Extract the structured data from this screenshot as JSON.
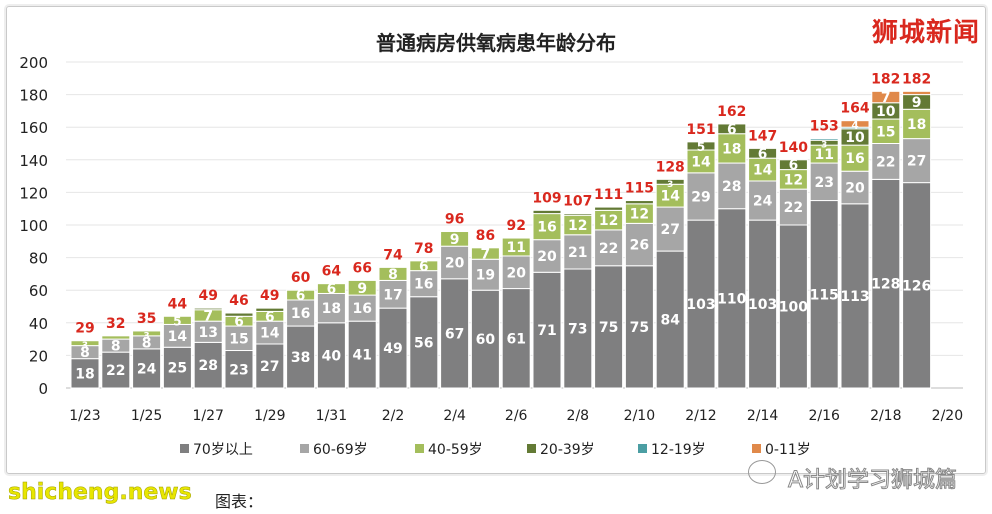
{
  "watermark_top": "狮城新闻",
  "watermark_bottom": "A计划学习狮城篇",
  "watermark_site": "shicheng.news",
  "caption": "图表：",
  "chart_data": {
    "type": "bar",
    "stacked": true,
    "title": "普通病房供氧病患年龄分布",
    "xlabel": "",
    "ylabel": "",
    "ylim": [
      0,
      200
    ],
    "yticks": [
      0,
      20,
      40,
      60,
      80,
      100,
      120,
      140,
      160,
      180,
      200
    ],
    "grid": true,
    "legend": "bottom",
    "categories": [
      "1/23",
      "1/24",
      "1/25",
      "1/26",
      "1/27",
      "1/28",
      "1/29",
      "1/30",
      "1/31",
      "2/1",
      "2/2",
      "2/3",
      "2/4",
      "2/5",
      "2/6",
      "2/7",
      "2/8",
      "2/9",
      "2/10",
      "2/11",
      "2/12",
      "2/13",
      "2/14",
      "2/15",
      "2/16",
      "2/17",
      "2/18",
      "2/19"
    ],
    "xticks": [
      "1/23",
      "1/25",
      "1/27",
      "1/29",
      "1/31",
      "2/2",
      "2/4",
      "2/6",
      "2/8",
      "2/10",
      "2/12",
      "2/14",
      "2/16",
      "2/18",
      "2/20"
    ],
    "series": [
      {
        "name": "70岁以上",
        "color": "#7f7f80",
        "values": [
          18,
          22,
          24,
          25,
          28,
          23,
          27,
          38,
          40,
          41,
          49,
          56,
          67,
          60,
          61,
          71,
          73,
          75,
          75,
          84,
          103,
          110,
          103,
          100,
          115,
          113,
          128,
          126
        ]
      },
      {
        "name": "60-69岁",
        "color": "#a6a6a6",
        "values": [
          8,
          8,
          8,
          14,
          13,
          15,
          14,
          16,
          18,
          16,
          17,
          16,
          20,
          19,
          20,
          20,
          21,
          22,
          26,
          27,
          29,
          28,
          24,
          22,
          23,
          20,
          22,
          27
        ]
      },
      {
        "name": "40-59岁",
        "color": "#a4be5c",
        "values": [
          3,
          2,
          3,
          5,
          7,
          6,
          6,
          6,
          6,
          9,
          8,
          6,
          9,
          7,
          11,
          16,
          12,
          12,
          12,
          14,
          14,
          18,
          14,
          12,
          11,
          16,
          15,
          18
        ]
      },
      {
        "name": "20-39岁",
        "color": "#637a35",
        "values": [
          0,
          0,
          0,
          0,
          1,
          2,
          2,
          0,
          0,
          0,
          0,
          0,
          0,
          0,
          0,
          2,
          1,
          2,
          2,
          3,
          5,
          6,
          6,
          6,
          3,
          10,
          10,
          9
        ]
      },
      {
        "name": "12-19岁",
        "color": "#4b9ea3",
        "values": [
          0,
          0,
          0,
          0,
          0,
          0,
          0,
          0,
          0,
          0,
          0,
          0,
          0,
          0,
          0,
          0,
          0,
          0,
          0,
          0,
          0,
          0,
          0,
          0,
          1,
          1,
          0,
          0
        ]
      },
      {
        "name": "0-11岁",
        "color": "#e0894a",
        "values": [
          0,
          0,
          0,
          0,
          0,
          0,
          0,
          0,
          0,
          0,
          0,
          0,
          0,
          0,
          0,
          0,
          0,
          0,
          0,
          0,
          0,
          0,
          0,
          0,
          0,
          4,
          7,
          2
        ]
      }
    ],
    "totals": [
      29,
      32,
      35,
      44,
      49,
      46,
      49,
      60,
      64,
      66,
      74,
      78,
      96,
      86,
      92,
      109,
      107,
      111,
      115,
      128,
      151,
      162,
      147,
      140,
      153,
      164,
      182,
      182
    ],
    "total_label_color": "#d9281e"
  }
}
